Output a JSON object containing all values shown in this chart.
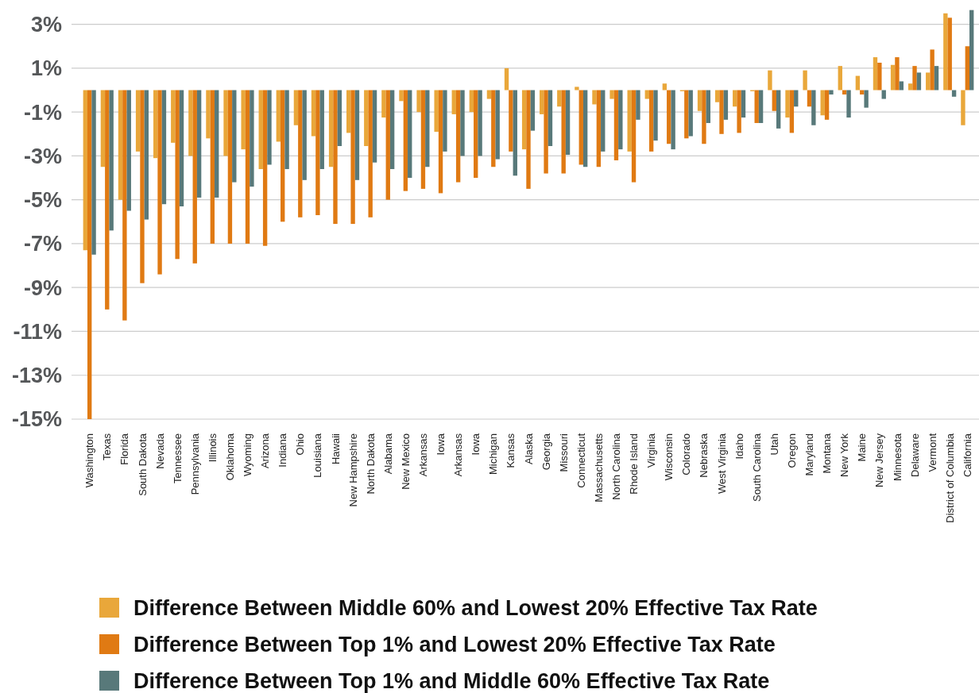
{
  "chart_data": {
    "type": "bar",
    "categories": [
      "Washington",
      "Texas",
      "Florida",
      "South Dakota",
      "Nevada",
      "Tennessee",
      "Pennsylvania",
      "Illinois",
      "Oklahoma",
      "Wyoming",
      "Arizona",
      "Indiana",
      "Ohio",
      "Louisiana",
      "Hawaii",
      "New Hampshire",
      "North Dakota",
      "Alabama",
      "New Mexico",
      "Arkansas",
      "Iowa",
      "Arkansas",
      "Iowa",
      "Michigan",
      "Kansas",
      "Alaska",
      "Georgia",
      "Missouri",
      "Connecticut",
      "Massachusetts",
      "North Carolina",
      "Rhode Island",
      "Virginia",
      "Wisconsin",
      "Colorado",
      "Nebraska",
      "West Virginia",
      "Idaho",
      "South Carolina",
      "Utah",
      "Oregon",
      "Maryland",
      "Montana",
      "New York",
      "Maine",
      "New Jersey",
      "Minnesota",
      "Delaware",
      "Vermont",
      "District of Columbia",
      "California"
    ],
    "series": [
      {
        "name": "Difference Between Middle 60% and Lowest 20% Effective Tax Rate",
        "color": "#e9a73a",
        "values": [
          -7.3,
          -3.5,
          -5.0,
          -2.8,
          -3.1,
          -2.4,
          -3.0,
          -2.2,
          -3.0,
          -2.7,
          -3.6,
          -2.35,
          -1.6,
          -2.1,
          -3.5,
          -1.95,
          -2.55,
          -1.25,
          -0.5,
          -1.0,
          -1.9,
          -1.1,
          -1.0,
          -0.4,
          1.0,
          -2.7,
          -1.1,
          -0.75,
          0.15,
          -0.65,
          -0.4,
          -2.8,
          -0.4,
          0.3,
          -0.05,
          -0.95,
          -0.55,
          -0.75,
          -0.05,
          0.9,
          -1.25,
          0.9,
          -1.15,
          1.1,
          0.65,
          1.5,
          1.15,
          0.3,
          0.8,
          3.5,
          -1.6
        ]
      },
      {
        "name": "Difference Between Top 1% and Lowest 20% Effective Tax Rate",
        "color": "#e07a13",
        "values": [
          -15.0,
          -10.0,
          -10.5,
          -8.8,
          -8.4,
          -7.7,
          -7.9,
          -7.0,
          -7.0,
          -7.0,
          -7.1,
          -6.0,
          -5.8,
          -5.7,
          -6.1,
          -6.1,
          -5.8,
          -5.0,
          -4.6,
          -4.5,
          -4.7,
          -4.2,
          -4.0,
          -3.5,
          -2.8,
          -4.5,
          -3.8,
          -3.8,
          -3.4,
          -3.5,
          -3.2,
          -4.2,
          -2.8,
          -2.45,
          -2.2,
          -2.45,
          -2.0,
          -1.95,
          -1.5,
          -0.95,
          -1.95,
          -0.75,
          -1.35,
          -0.2,
          -0.2,
          1.25,
          1.5,
          1.1,
          1.85,
          3.3,
          2.0
        ]
      },
      {
        "name": "Difference Between Top 1% and Middle 60% Effective Tax Rate",
        "color": "#58797a",
        "values": [
          -7.5,
          -6.4,
          -5.5,
          -5.9,
          -5.2,
          -5.3,
          -4.9,
          -4.9,
          -4.2,
          -4.4,
          -3.4,
          -3.6,
          -4.1,
          -3.6,
          -2.55,
          -4.1,
          -3.3,
          -3.6,
          -4.0,
          -3.5,
          -2.8,
          -3.0,
          -3.0,
          -3.15,
          -3.9,
          -1.85,
          -2.55,
          -2.95,
          -3.5,
          -2.8,
          -2.7,
          -1.35,
          -2.3,
          -2.7,
          -2.1,
          -1.5,
          -1.35,
          -1.25,
          -1.5,
          -1.75,
          -0.75,
          -1.6,
          -0.2,
          -1.25,
          -0.8,
          -0.4,
          0.4,
          0.8,
          1.1,
          -0.3,
          3.65
        ]
      }
    ],
    "ylim": [
      -15,
      4
    ],
    "yticks": [
      {
        "value": 3,
        "label": "3%"
      },
      {
        "value": 1,
        "label": "1%"
      },
      {
        "value": -1,
        "label": "-1%"
      },
      {
        "value": -3,
        "label": "-3%"
      },
      {
        "value": -5,
        "label": "-5%"
      },
      {
        "value": -7,
        "label": "-7%"
      },
      {
        "value": -9,
        "label": "-9%"
      },
      {
        "value": -11,
        "label": "-11%"
      },
      {
        "value": -13,
        "label": "-13%"
      },
      {
        "value": -15,
        "label": "-15%"
      }
    ],
    "grid": "y",
    "legend": "bottom"
  }
}
